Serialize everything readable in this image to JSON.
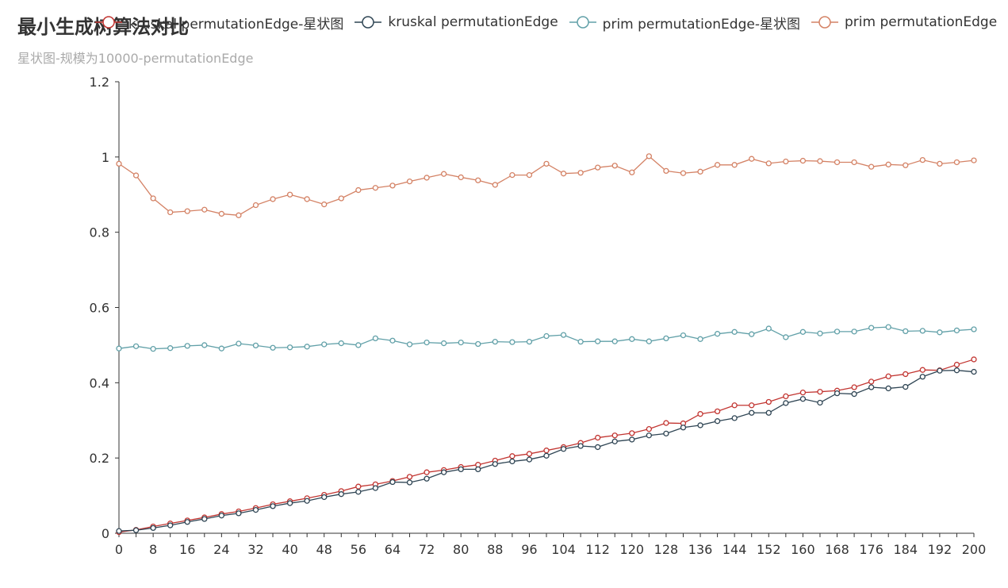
{
  "title": "最小生成树算法对比",
  "subtitle": "星状图-规模为10000-permutationEdge",
  "chart_data": {
    "type": "line",
    "title": "最小生成树算法对比",
    "subtitle": "星状图-规模为10000-permutationEdge",
    "xlabel": "",
    "ylabel": "",
    "ylim": [
      0,
      1.2
    ],
    "xlim": [
      0,
      200
    ],
    "grid": false,
    "legend_position": "top",
    "x": [
      0,
      4,
      8,
      12,
      16,
      20,
      24,
      28,
      32,
      36,
      40,
      44,
      48,
      52,
      56,
      60,
      64,
      68,
      72,
      76,
      80,
      84,
      88,
      92,
      96,
      100,
      104,
      108,
      112,
      116,
      120,
      124,
      128,
      132,
      136,
      140,
      144,
      148,
      152,
      156,
      160,
      164,
      168,
      172,
      176,
      180,
      184,
      188,
      192,
      196,
      200
    ],
    "x_tick_labels": [
      "0",
      "8",
      "16",
      "24",
      "32",
      "40",
      "48",
      "56",
      "64",
      "72",
      "80",
      "88",
      "96",
      "104",
      "112",
      "120",
      "128",
      "136",
      "144",
      "152",
      "160",
      "168",
      "176",
      "184",
      "192",
      "200"
    ],
    "y_tick_labels": [
      "0",
      "0.2",
      "0.4",
      "0.6",
      "0.8",
      "1",
      "1.2"
    ],
    "series": [
      {
        "name": "kruskal permutationEdge-星状图",
        "legend_label": "kruskal permutationEdge-星状图",
        "color": "#c23531",
        "values": [
          0.003,
          0.009,
          0.018,
          0.026,
          0.034,
          0.042,
          0.051,
          0.058,
          0.067,
          0.077,
          0.085,
          0.093,
          0.102,
          0.112,
          0.124,
          0.13,
          0.139,
          0.15,
          0.162,
          0.168,
          0.176,
          0.182,
          0.193,
          0.205,
          0.211,
          0.22,
          0.229,
          0.24,
          0.254,
          0.26,
          0.266,
          0.277,
          0.293,
          0.292,
          0.317,
          0.324,
          0.34,
          0.34,
          0.349,
          0.364,
          0.374,
          0.376,
          0.379,
          0.388,
          0.403,
          0.417,
          0.423,
          0.434,
          0.433,
          0.448,
          0.462
        ]
      },
      {
        "name": "kruskal permutationEdge",
        "legend_label": "kruskal permutationEdge",
        "color": "#2f4554",
        "values": [
          0.006,
          0.008,
          0.014,
          0.021,
          0.03,
          0.038,
          0.047,
          0.053,
          0.062,
          0.072,
          0.08,
          0.086,
          0.096,
          0.104,
          0.11,
          0.12,
          0.136,
          0.135,
          0.145,
          0.162,
          0.17,
          0.17,
          0.184,
          0.191,
          0.196,
          0.206,
          0.224,
          0.232,
          0.229,
          0.244,
          0.249,
          0.26,
          0.265,
          0.281,
          0.287,
          0.298,
          0.306,
          0.32,
          0.32,
          0.346,
          0.357,
          0.347,
          0.372,
          0.37,
          0.388,
          0.385,
          0.389,
          0.416,
          0.432,
          0.433,
          0.429
        ]
      },
      {
        "name": "prim permutationEdge-星状图",
        "legend_label": "prim permutationEdge-星状图",
        "color": "#61a0a8",
        "values": [
          0.491,
          0.497,
          0.49,
          0.492,
          0.498,
          0.5,
          0.491,
          0.504,
          0.499,
          0.493,
          0.494,
          0.496,
          0.502,
          0.505,
          0.5,
          0.518,
          0.512,
          0.502,
          0.507,
          0.505,
          0.507,
          0.503,
          0.509,
          0.508,
          0.509,
          0.524,
          0.527,
          0.509,
          0.51,
          0.51,
          0.516,
          0.51,
          0.518,
          0.526,
          0.516,
          0.53,
          0.535,
          0.529,
          0.544,
          0.521,
          0.535,
          0.531,
          0.536,
          0.536,
          0.546,
          0.548,
          0.537,
          0.538,
          0.534,
          0.539,
          0.542
        ]
      },
      {
        "name": "prim permutationEdge",
        "legend_label": "prim permutationEdge",
        "color": "#d48265",
        "values": [
          0.982,
          0.951,
          0.89,
          0.853,
          0.856,
          0.86,
          0.849,
          0.845,
          0.872,
          0.888,
          0.9,
          0.888,
          0.874,
          0.89,
          0.912,
          0.918,
          0.924,
          0.935,
          0.945,
          0.955,
          0.946,
          0.938,
          0.926,
          0.952,
          0.952,
          0.982,
          0.956,
          0.958,
          0.972,
          0.977,
          0.959,
          1.002,
          0.963,
          0.957,
          0.961,
          0.979,
          0.979,
          0.995,
          0.983,
          0.988,
          0.99,
          0.989,
          0.986,
          0.986,
          0.974,
          0.98,
          0.978,
          0.992,
          0.982,
          0.986,
          0.991
        ]
      }
    ]
  }
}
